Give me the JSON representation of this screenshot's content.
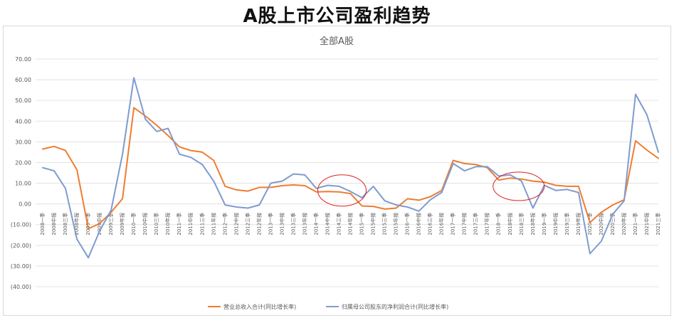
{
  "page_title": "A股上市公司盈利趋势",
  "chart_data": {
    "type": "line",
    "title": "全部A股",
    "xlabel": "",
    "ylabel": "",
    "ylim": [
      -40,
      70
    ],
    "yticks": [
      "70.00",
      "60.00",
      "50.00",
      "40.00",
      "30.00",
      "20.00",
      "10.00",
      "0.00",
      "(10.00)",
      "(20.00)",
      "(30.00)",
      "(40.00)"
    ],
    "ytick_values": [
      70,
      60,
      50,
      40,
      30,
      20,
      10,
      0,
      -10,
      -20,
      -30,
      -40
    ],
    "grid": true,
    "legend_position": "bottom",
    "categories": [
      "2008一季",
      "2008中报",
      "2008三季",
      "2008年报",
      "2009一季",
      "2009中报",
      "2009三季",
      "2009年报",
      "2010一季",
      "2010中报",
      "2010三季",
      "2010年报",
      "2011一季",
      "2011中报",
      "2011三季",
      "2011年报",
      "2012一季",
      "2012中报",
      "2012三季",
      "2012年报",
      "2013一季",
      "2013中报",
      "2013三季",
      "2013年报",
      "2014一季",
      "2014中报",
      "2014三季",
      "2014年报",
      "2015一季",
      "2015中报",
      "2015三季",
      "2015年报",
      "2016一季",
      "2016中报",
      "2016三季",
      "2016年报",
      "2017一季",
      "2017中报",
      "2017三季",
      "2017年报",
      "2018一季",
      "2018中报",
      "2018三季",
      "2018年报",
      "2019一季",
      "2019中报",
      "2019三季",
      "2019年报",
      "2020一季",
      "2020中报",
      "2020三季",
      "2020年报",
      "2021一季",
      "2021中报",
      "2021三季"
    ],
    "series": [
      {
        "name": "营业总收入合计(同比增长率)",
        "color": "#ED7D31",
        "values": [
          26.5,
          27.8,
          25.8,
          16.5,
          -12.0,
          -9.5,
          -4.0,
          2.5,
          46.5,
          42.5,
          38.0,
          33.0,
          27.5,
          25.8,
          25.0,
          21.0,
          8.5,
          6.8,
          6.2,
          8.0,
          8.0,
          8.8,
          9.2,
          8.8,
          5.8,
          6.0,
          5.8,
          5.0,
          -1.0,
          -1.2,
          -2.5,
          -2.0,
          2.5,
          1.8,
          3.5,
          6.5,
          21.0,
          19.5,
          19.0,
          17.5,
          11.5,
          12.5,
          12.0,
          11.0,
          10.5,
          9.0,
          8.5,
          8.5,
          -9.0,
          -4.0,
          -0.5,
          2.0,
          30.5,
          26.0,
          22.0
        ]
      },
      {
        "name": "归属母公司股东的净利润合计(同比增长率)",
        "color": "#7F9BCF",
        "values": [
          17.5,
          16.0,
          7.5,
          -17.0,
          -26.0,
          -13.0,
          -3.0,
          24.0,
          61.0,
          41.0,
          35.0,
          36.5,
          24.0,
          22.5,
          19.0,
          11.0,
          -0.5,
          -1.5,
          -2.0,
          -0.5,
          10.0,
          11.0,
          14.5,
          14.0,
          7.5,
          9.0,
          8.5,
          6.0,
          3.0,
          8.5,
          1.5,
          -0.5,
          -1.5,
          -3.5,
          2.0,
          5.5,
          19.5,
          16.0,
          18.0,
          18.0,
          13.5,
          14.0,
          11.0,
          -2.0,
          9.0,
          6.5,
          7.0,
          5.5,
          -24.0,
          -18.0,
          -5.0,
          1.5,
          53.0,
          43.0,
          25.0
        ]
      }
    ]
  },
  "annotations": [
    {
      "name": "circle-2014",
      "color": "#E02020"
    },
    {
      "name": "circle-2018",
      "color": "#E02020"
    }
  ]
}
